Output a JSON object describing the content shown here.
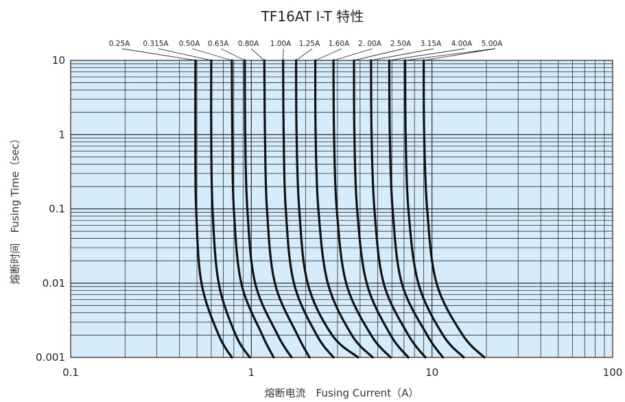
{
  "chart_data": {
    "type": "line",
    "title": "TF16AT  I-T 特性",
    "xlabel": "熔断电流　Fusing Current（A）",
    "ylabel": "熔断时间　Fusing Time（sec）",
    "xscale": "log",
    "yscale": "log",
    "xlim": [
      0.1,
      100
    ],
    "ylim": [
      0.001,
      10
    ],
    "xticks": [
      0.1,
      1,
      10,
      100
    ],
    "xtick_labels": [
      "0.1",
      "1",
      "10",
      "100"
    ],
    "yticks": [
      0.001,
      0.01,
      0.1,
      1,
      10
    ],
    "ytick_labels": [
      "0.001",
      "0.01",
      "0.1",
      "1",
      "10"
    ],
    "grid": true,
    "plot_background": "#d6ecfa",
    "line_color": "#111111",
    "series": [
      {
        "name": "0.25A",
        "points": [
          [
            0.49,
            10
          ],
          [
            0.49,
            1
          ],
          [
            0.495,
            0.1
          ],
          [
            0.53,
            0.01
          ],
          [
            0.66,
            0.002
          ],
          [
            0.78,
            0.001
          ]
        ]
      },
      {
        "name": "0.315A",
        "points": [
          [
            0.6,
            10
          ],
          [
            0.6,
            1
          ],
          [
            0.61,
            0.1
          ],
          [
            0.66,
            0.01
          ],
          [
            0.82,
            0.002
          ],
          [
            0.98,
            0.001
          ]
        ]
      },
      {
        "name": "0.50A",
        "points": [
          [
            0.78,
            10
          ],
          [
            0.785,
            1
          ],
          [
            0.8,
            0.1
          ],
          [
            0.88,
            0.01
          ],
          [
            1.15,
            0.002
          ],
          [
            1.33,
            0.001
          ]
        ]
      },
      {
        "name": "0.63A",
        "points": [
          [
            0.92,
            10
          ],
          [
            0.925,
            1
          ],
          [
            0.95,
            0.1
          ],
          [
            1.05,
            0.01
          ],
          [
            1.4,
            0.002
          ],
          [
            1.67,
            0.001
          ]
        ]
      },
      {
        "name": "0.80A",
        "points": [
          [
            1.18,
            10
          ],
          [
            1.19,
            1
          ],
          [
            1.22,
            0.1
          ],
          [
            1.35,
            0.01
          ],
          [
            1.8,
            0.002
          ],
          [
            2.1,
            0.001
          ]
        ]
      },
      {
        "name": "1.00A",
        "points": [
          [
            1.5,
            10
          ],
          [
            1.51,
            1
          ],
          [
            1.55,
            0.1
          ],
          [
            1.72,
            0.01
          ],
          [
            2.3,
            0.002
          ],
          [
            2.85,
            0.001
          ]
        ]
      },
      {
        "name": "1.25A",
        "points": [
          [
            1.77,
            10
          ],
          [
            1.78,
            1
          ],
          [
            1.84,
            0.1
          ],
          [
            2.05,
            0.01
          ],
          [
            2.8,
            0.002
          ],
          [
            3.9,
            0.001
          ]
        ]
      },
      {
        "name": "1.60A",
        "points": [
          [
            2.26,
            10
          ],
          [
            2.27,
            1
          ],
          [
            2.35,
            0.1
          ],
          [
            2.65,
            0.01
          ],
          [
            3.6,
            0.002
          ],
          [
            4.7,
            0.001
          ]
        ]
      },
      {
        "name": "2. 00A",
        "points": [
          [
            2.85,
            10
          ],
          [
            2.87,
            1
          ],
          [
            2.97,
            0.1
          ],
          [
            3.35,
            0.01
          ],
          [
            4.6,
            0.002
          ],
          [
            5.9,
            0.001
          ]
        ]
      },
      {
        "name": "2.50A",
        "points": [
          [
            3.7,
            10
          ],
          [
            3.72,
            1
          ],
          [
            3.85,
            0.1
          ],
          [
            4.35,
            0.01
          ],
          [
            5.9,
            0.002
          ],
          [
            7.4,
            0.001
          ]
        ]
      },
      {
        "name": "3.15A",
        "points": [
          [
            4.6,
            10
          ],
          [
            4.63,
            1
          ],
          [
            4.8,
            0.1
          ],
          [
            5.4,
            0.01
          ],
          [
            7.4,
            0.002
          ],
          [
            9.2,
            0.001
          ]
        ]
      },
      {
        "name": "4.00A",
        "points": [
          [
            5.8,
            10
          ],
          [
            5.84,
            1
          ],
          [
            6.05,
            0.1
          ],
          [
            6.8,
            0.01
          ],
          [
            9.4,
            0.002
          ],
          [
            11.5,
            0.001
          ]
        ]
      },
      {
        "name": "5.00A",
        "points": [
          [
            7.1,
            10
          ],
          [
            7.15,
            1
          ],
          [
            7.4,
            0.1
          ],
          [
            8.4,
            0.01
          ],
          [
            11.5,
            0.002
          ],
          [
            15,
            0.001
          ]
        ]
      },
      {
        "name": "",
        "points": [
          [
            9.0,
            10
          ],
          [
            9.05,
            1
          ],
          [
            9.4,
            0.1
          ],
          [
            10.6,
            0.01
          ],
          [
            14.8,
            0.002
          ],
          [
            19.5,
            0.001
          ]
        ]
      }
    ]
  }
}
